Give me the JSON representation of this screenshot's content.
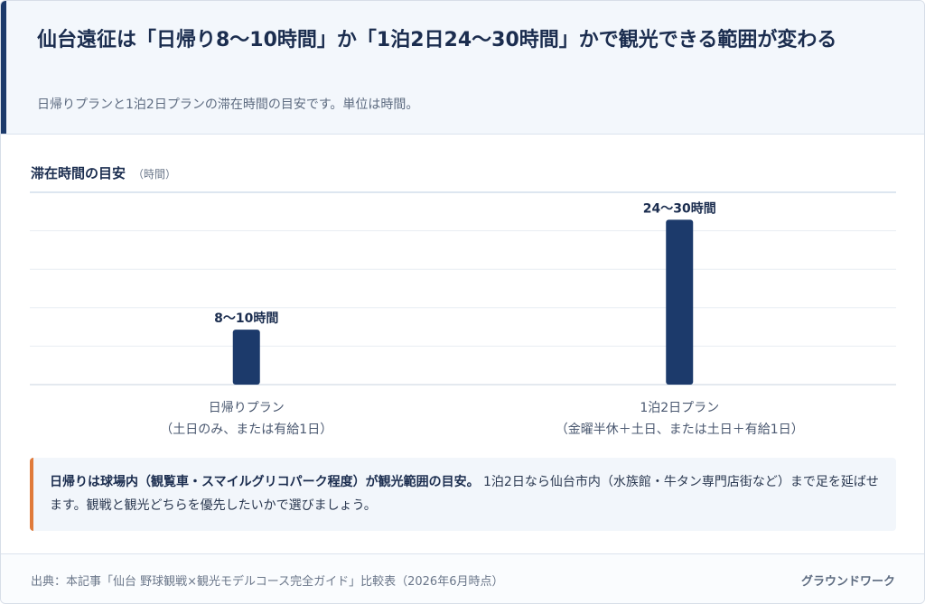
{
  "header": {
    "title": "仙台遠征は「日帰り8〜10時間」か「1泊2日24〜30時間」かで観光できる範囲が変わる",
    "subtitle": "日帰りプランと1泊2日プランの滞在時間の目安です。単位は時間。"
  },
  "chart_head": {
    "label": "滞在時間の目安",
    "unit": "（時間）"
  },
  "chart_data": {
    "type": "bar",
    "title": "滞在時間の目安",
    "ylabel": "時間",
    "categories": [
      [
        "日帰りプラン",
        "（土日のみ、または有給1日）"
      ],
      [
        "1泊2日プラン",
        "（金曜半休＋土日、または土日＋有給1日）"
      ]
    ],
    "values": [
      10,
      30
    ],
    "ranges": [
      [
        8,
        10
      ],
      [
        24,
        30
      ]
    ],
    "data_labels": [
      "8〜10時間",
      "24〜30時間"
    ],
    "ylim": [
      0,
      35
    ],
    "grid": true,
    "bar_color": "#1c3a6b"
  },
  "note": {
    "lead": "日帰りは球場内（観覧車・スマイルグリコパーク程度）が観光範囲の目安。",
    "body": " 1泊2日なら仙台市内（水族館・牛タン専門店街など）まで足を延ばせます。観戦と観光どちらを優先したいかで選びましょう。",
    "accent_color": "#e07a3a"
  },
  "footer": {
    "source": "出典：本記事「仙台 野球観戦×観光モデルコース完全ガイド」比較表（2026年6月時点）",
    "brand": "グラウンドワーク"
  }
}
